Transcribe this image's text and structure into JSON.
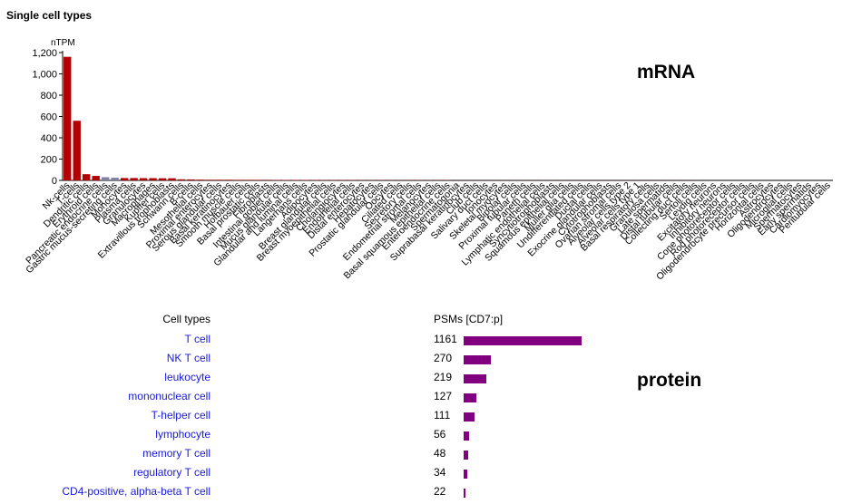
{
  "section_title": "Single cell types",
  "mrna_label": "mRNA",
  "protein_label": "protein",
  "colors": {
    "bar_main": "#b30000",
    "bar_alt": "#8080a0",
    "bar_protein": "#800080",
    "link": "#1a1ad8"
  },
  "chart_data": [
    {
      "type": "bar",
      "ylabel": "nTPM",
      "ylim": [
        0,
        1200
      ],
      "yticks": [
        "0",
        "200",
        "400",
        "600",
        "800",
        "1,000",
        "1,200"
      ],
      "categories": [
        "Nk-cells",
        "T-cells",
        "Dendritic cells",
        "Erythroid cells",
        "Pancreatic endocrine cells",
        "Gastric mucus-secreting cells",
        "Monocytes",
        "Plasma cells",
        "Granulocytes",
        "Macrophages",
        "Kupffer cells",
        "Extravillous trophoblasts",
        "Schwann cells",
        "B-cells",
        "Mesothelial cells",
        "Proximal enterocytes",
        "Serous glandular cells",
        "Basal keratinocytes",
        "Smooth muscle cells",
        "Hofbauer cells",
        "Basal prostatic cells",
        "Fibroblasts",
        "Intestinal goblet cells",
        "Mucus glandular cells",
        "Glandular and luminal cells",
        "Langerhans cells",
        "Adipocytes",
        "Breast glandular cells",
        "Breast myoepithelial cells",
        "Cholangiocytes",
        "Endothelial cells",
        "Distal enterocytes",
        "Hepatocytes",
        "Prostatic glandular cells",
        "Oocytes",
        "Ciliated cells",
        "Secretory cells",
        "Endometrial stromal cells",
        "Melanocytes",
        "Basal squamous epithelial cells",
        "Enteroendocrine cells",
        "Spermatogonia",
        "Suprabasal keratinocytes",
        "Club cells",
        "Salivary duct cells",
        "Ionocytes",
        "Skeletal myocytes",
        "Bipolar cells",
        "Proximal tubular cells",
        "Paneth cells",
        "Lymphatic endothelial cells",
        "Syncytiotrophoblasts",
        "Squamous epithelial cells",
        "Muller glia cells",
        "Undifferentiated cells",
        "Ductal cells",
        "Exocrine glandular cells",
        "Cytotrophoblasts",
        "Ovarian stromal cells",
        "Alveolar cells type 2",
        "Alveolar cells type 1",
        "Basal respiratory cells",
        "Granulosa cells",
        "Late spermatids",
        "Distal tubular cells",
        "Collecting duct cells",
        "Sertoli cells",
        "Leydig cells",
        "Excitatory neurons",
        "Inhibitory neurons",
        "Cone photoreceptor cells",
        "Rod photoreceptor cells",
        "Oligodendrocyte precursor cells",
        "Horizontal cells",
        "Astrocytes",
        "Oligodendrocytes",
        "Microglial cells",
        "Spermatocytes",
        "Early spermatids",
        "Cardiomyocytes",
        "Peritubular cells"
      ],
      "values": [
        1160,
        560,
        58,
        42,
        30,
        25,
        22,
        22,
        21,
        21,
        20,
        20,
        10,
        9,
        7,
        6,
        6,
        6,
        5,
        5,
        5,
        5,
        4,
        4,
        4,
        4,
        3,
        3,
        3,
        3,
        3,
        2,
        2,
        2,
        2,
        2,
        2,
        2,
        2,
        2,
        2,
        1,
        1,
        1,
        1,
        1,
        1,
        1,
        1,
        1,
        1,
        1,
        1,
        1,
        1,
        1,
        1,
        1,
        1,
        1,
        1,
        1,
        1,
        1,
        1,
        1,
        1,
        0,
        0,
        0,
        0,
        0,
        0,
        0,
        0,
        0,
        0,
        0,
        0,
        0,
        0
      ],
      "alt_color_indices": [
        4,
        5
      ]
    },
    {
      "type": "bar",
      "col_headers": {
        "cell_types": "Cell types",
        "psms": "PSMs",
        "psms_unit": "[CD7:p]"
      },
      "categories": [
        "T cell",
        "NK T cell",
        "leukocyte",
        "mononuclear cell",
        "T-helper cell",
        "lymphocyte",
        "memory T cell",
        "regulatory T cell",
        "CD4-positive, alpha-beta T cell"
      ],
      "values": [
        1161,
        270,
        219,
        127,
        111,
        56,
        48,
        34,
        22
      ]
    }
  ]
}
